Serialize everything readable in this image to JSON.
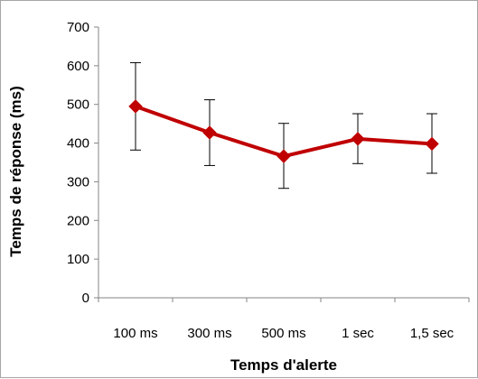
{
  "chart_data": {
    "type": "line",
    "title": "",
    "xlabel": "Temps d'alerte",
    "ylabel": "Temps de réponse (ms)",
    "categories": [
      "100 ms",
      "300 ms",
      "500 ms",
      "1 sec",
      "1,5 sec"
    ],
    "series": [
      {
        "values": [
          495,
          427,
          366,
          411,
          398
        ],
        "error_upper": [
          608,
          512,
          451,
          476,
          476
        ],
        "error_lower": [
          382,
          342,
          283,
          347,
          322
        ],
        "color": "#c00000"
      }
    ],
    "ylim": [
      0,
      700
    ],
    "yticks": [
      0,
      100,
      200,
      300,
      400,
      500,
      600,
      700
    ],
    "grid": false,
    "legend": "none",
    "marker": "diamond",
    "error_bar_color": "#000000"
  }
}
